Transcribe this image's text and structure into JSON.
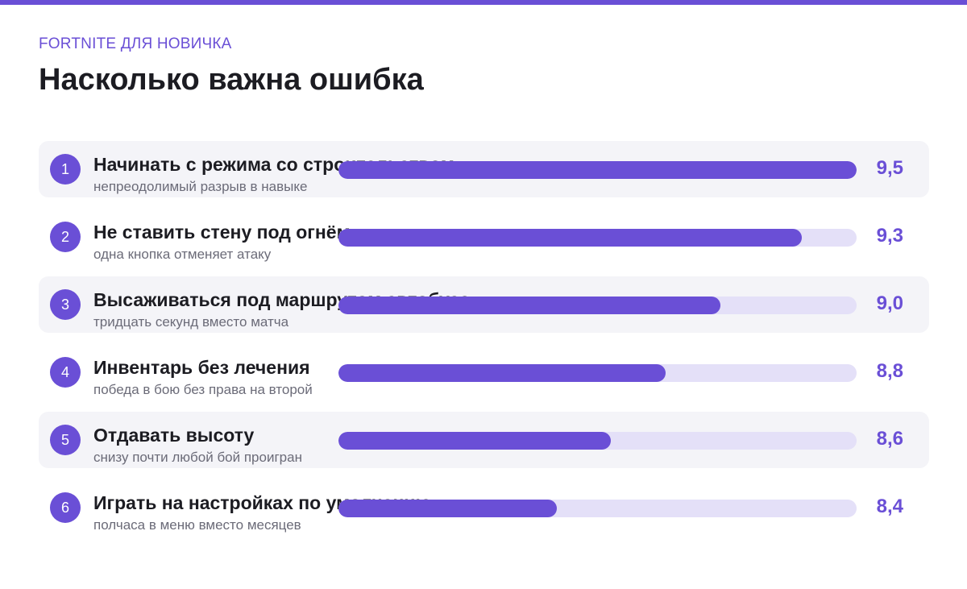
{
  "header": {
    "kicker": "FORTNITE ДЛЯ НОВИЧКА",
    "title": "Насколько важна ошибка"
  },
  "colors": {
    "accent": "#6a4fd6",
    "track": "#e4e0f8",
    "row_shade": "#f4f4f8"
  },
  "chart_data": {
    "type": "bar",
    "orientation": "horizontal",
    "xlim": [
      0,
      9.5
    ],
    "categories": [
      "Начинать с режима со строительством",
      "Не ставить стену под огнём",
      "Высаживаться под маршрутом автобуса",
      "Инвентарь без лечения",
      "Отдавать высоту",
      "Играть на настройках по умолчанию"
    ],
    "rows": [
      {
        "rank": "1",
        "label": "Начинать с режима со строительством",
        "note": "непреодолимый разрыв в навыке",
        "value": 9.5,
        "value_label": "9,5"
      },
      {
        "rank": "2",
        "label": "Не ставить стену под огнём",
        "note": "одна кнопка отменяет атаку",
        "value": 9.3,
        "value_label": "9,3"
      },
      {
        "rank": "3",
        "label": "Высаживаться под маршрутом автобуса",
        "note": "тридцать секунд вместо матча",
        "value": 9.0,
        "value_label": "9,0"
      },
      {
        "rank": "4",
        "label": "Инвентарь без лечения",
        "note": "победа в бою без права на второй",
        "value": 8.8,
        "value_label": "8,8"
      },
      {
        "rank": "5",
        "label": "Отдавать высоту",
        "note": "снизу почти любой бой проигран",
        "value": 8.6,
        "value_label": "8,6"
      },
      {
        "rank": "6",
        "label": "Играть на настройках по умолчанию",
        "note": "полчаса в меню вместо месяцев",
        "value": 8.4,
        "value_label": "8,4"
      }
    ]
  }
}
